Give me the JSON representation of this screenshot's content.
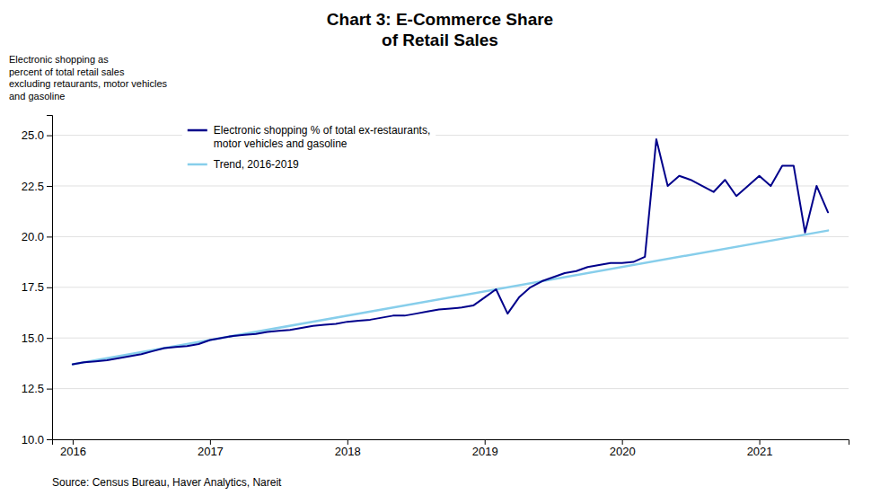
{
  "chart_data": {
    "type": "line",
    "title": "Chart 3: E-Commerce Share\nof Retail Sales",
    "ylabel": "Electronic shopping as\npercent of total retail sales\nexcluding retaurants, motor vehicles\nand gasoline",
    "source": "Source: Census Bureau, Haver Analytics, Nareit",
    "series": [
      {
        "name": "Electronic shopping % of total ex-restaurants,\nmotor vehicles and gasoline",
        "color": "#00008B",
        "x": [
          2016.0,
          2016.083,
          2016.167,
          2016.25,
          2016.333,
          2016.417,
          2016.5,
          2016.583,
          2016.667,
          2016.75,
          2016.833,
          2016.917,
          2017.0,
          2017.083,
          2017.167,
          2017.25,
          2017.333,
          2017.417,
          2017.5,
          2017.583,
          2017.667,
          2017.75,
          2017.833,
          2017.917,
          2018.0,
          2018.083,
          2018.167,
          2018.25,
          2018.333,
          2018.417,
          2018.5,
          2018.583,
          2018.667,
          2018.75,
          2018.833,
          2018.917,
          2019.0,
          2019.083,
          2019.167,
          2019.25,
          2019.333,
          2019.417,
          2019.5,
          2019.583,
          2019.667,
          2019.75,
          2019.833,
          2019.917,
          2020.0,
          2020.083,
          2020.167,
          2020.25,
          2020.333,
          2020.417,
          2020.5,
          2020.583,
          2020.667,
          2020.75,
          2020.833,
          2020.917,
          2021.0,
          2021.083,
          2021.167,
          2021.25,
          2021.333,
          2021.417,
          2021.5
        ],
        "values": [
          13.7,
          13.8,
          13.85,
          13.9,
          14.0,
          14.1,
          14.2,
          14.35,
          14.5,
          14.55,
          14.6,
          14.7,
          14.9,
          15.0,
          15.1,
          15.15,
          15.2,
          15.3,
          15.35,
          15.4,
          15.5,
          15.6,
          15.65,
          15.7,
          15.8,
          15.85,
          15.9,
          16.0,
          16.1,
          16.1,
          16.2,
          16.3,
          16.4,
          16.45,
          16.5,
          16.6,
          17.0,
          17.4,
          16.2,
          17.0,
          17.5,
          17.8,
          18.0,
          18.2,
          18.3,
          18.5,
          18.6,
          18.7,
          18.7,
          18.75,
          19.0,
          24.8,
          22.5,
          23.0,
          22.8,
          22.5,
          22.2,
          22.8,
          22.0,
          22.5,
          23.0,
          22.5,
          23.5,
          23.5,
          20.2,
          22.5,
          21.2
        ]
      },
      {
        "name": "Trend, 2016-2019",
        "color": "#87CEEB",
        "x": [
          2016.0,
          2021.5
        ],
        "values": [
          13.7,
          20.3
        ]
      }
    ],
    "xlim": [
      2015.85,
      2021.65
    ],
    "xticks": [
      2016,
      2017,
      2018,
      2019,
      2020,
      2021
    ],
    "ylim": [
      10.0,
      26.0
    ],
    "yticks": [
      {
        "value": 10.0,
        "label": "10.0"
      },
      12.5,
      {
        "value": 15.0,
        "label": "15.0"
      },
      17.5,
      {
        "value": 20.0,
        "label": "20.0"
      },
      22.5,
      {
        "value": 25.0,
        "label": "25.0"
      }
    ],
    "grid": true,
    "legend": "upper left"
  }
}
